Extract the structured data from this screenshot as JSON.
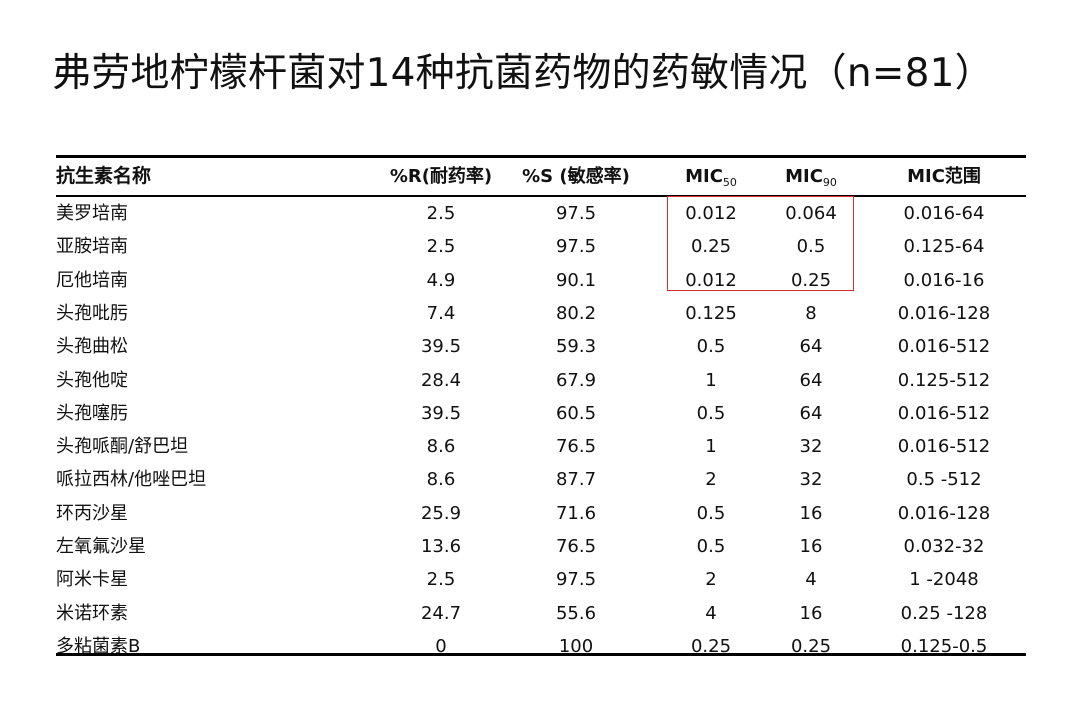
{
  "title": "弗劳地柠檬杆菌对14种抗菌药物的药敏情况（n=81）",
  "table": {
    "headers": {
      "name": "抗生素名称",
      "r": "%R(耐药率)",
      "s": "%S (敏感率)",
      "mic50_base": "MIC",
      "mic50_sub": "50",
      "mic90_base": "MIC",
      "mic90_sub": "90",
      "range": "MIC范围"
    },
    "rows": [
      {
        "name": "美罗培南",
        "r": "2.5",
        "s": "97.5",
        "mic50": "0.012",
        "mic90": "0.064",
        "range": "0.016-64"
      },
      {
        "name": "亚胺培南",
        "r": "2.5",
        "s": "97.5",
        "mic50": "0.25",
        "mic90": "0.5",
        "range": "0.125-64"
      },
      {
        "name": "厄他培南",
        "r": "4.9",
        "s": "90.1",
        "mic50": "0.012",
        "mic90": "0.25",
        "range": "0.016-16"
      },
      {
        "name": "头孢吡肟",
        "r": "7.4",
        "s": "80.2",
        "mic50": "0.125",
        "mic90": "8",
        "range": "0.016-128"
      },
      {
        "name": "头孢曲松",
        "r": "39.5",
        "s": "59.3",
        "mic50": "0.5",
        "mic90": "64",
        "range": "0.016-512"
      },
      {
        "name": "头孢他啶",
        "r": "28.4",
        "s": "67.9",
        "mic50": "1",
        "mic90": "64",
        "range": "0.125-512"
      },
      {
        "name": "头孢噻肟",
        "r": "39.5",
        "s": "60.5",
        "mic50": "0.5",
        "mic90": "64",
        "range": "0.016-512"
      },
      {
        "name": "头孢哌酮/舒巴坦",
        "r": "8.6",
        "s": "76.5",
        "mic50": "1",
        "mic90": "32",
        "range": "0.016-512"
      },
      {
        "name": "哌拉西林/他唑巴坦",
        "r": "8.6",
        "s": "87.7",
        "mic50": "2",
        "mic90": "32",
        "range": "0.5 -512"
      },
      {
        "name": "环丙沙星",
        "r": "25.9",
        "s": "71.6",
        "mic50": "0.5",
        "mic90": "16",
        "range": "0.016-128"
      },
      {
        "name": "左氧氟沙星",
        "r": "13.6",
        "s": "76.5",
        "mic50": "0.5",
        "mic90": "16",
        "range": "0.032-32"
      },
      {
        "name": "阿米卡星",
        "r": "2.5",
        "s": "97.5",
        "mic50": "2",
        "mic90": "4",
        "range": "1 -2048"
      },
      {
        "name": "米诺环素",
        "r": "24.7",
        "s": "55.6",
        "mic50": "4",
        "mic90": "16",
        "range": "0.25 -128"
      },
      {
        "name": "多粘菌素B",
        "r": "0",
        "s": "100",
        "mic50": "0.25",
        "mic90": "0.25",
        "range": "0.125-0.5"
      }
    ]
  },
  "colors": {
    "highlight": "#d62d2d",
    "rule": "#000000",
    "text": "#111111"
  }
}
